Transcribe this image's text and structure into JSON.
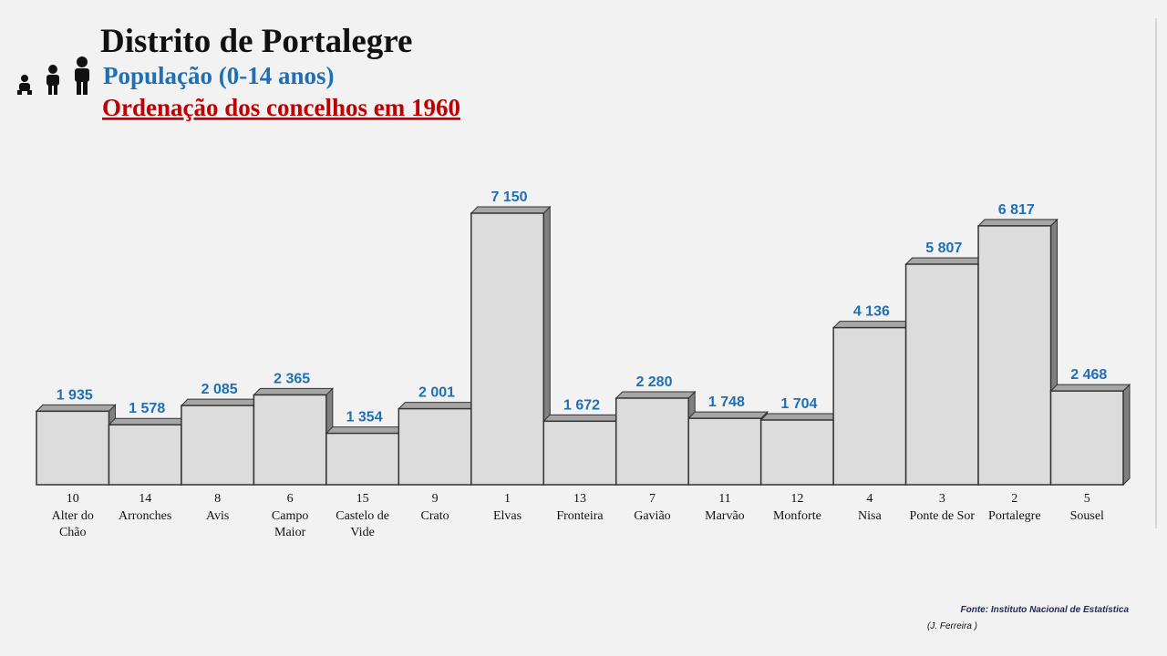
{
  "chart_data": {
    "type": "bar3d",
    "title": "Distrito de Portalegre",
    "subtitle": "População (0-14 anos)",
    "subtitle2": "Ordenação dos concelhos em 1960",
    "categories": [
      "Alter do Chão",
      "Arronches",
      "Avis",
      "Campo Maior",
      "Castelo de Vide",
      "Crato",
      "Elvas",
      "Fronteira",
      "Gavião",
      "Marvão",
      "Monforte",
      "Nisa",
      "Ponte de Sor",
      "Portalegre",
      "Sousel"
    ],
    "ranks": [
      10,
      14,
      8,
      6,
      15,
      9,
      1,
      13,
      7,
      11,
      12,
      4,
      3,
      2,
      5
    ],
    "values": [
      1935,
      1578,
      2085,
      2365,
      1354,
      2001,
      7150,
      1672,
      2280,
      1748,
      1704,
      4136,
      5807,
      6817,
      2468
    ],
    "value_labels": [
      "1 935",
      "1 578",
      "2 085",
      "2 365",
      "1 354",
      "2 001",
      "7 150",
      "1 672",
      "2 280",
      "1 748",
      "1 704",
      "4 136",
      "5 807",
      "6 817",
      "2 468"
    ],
    "color": "#dcdcdc",
    "source": "Fonte: Instituto Nacional de Estatística",
    "author": "(J. Ferreira )"
  }
}
